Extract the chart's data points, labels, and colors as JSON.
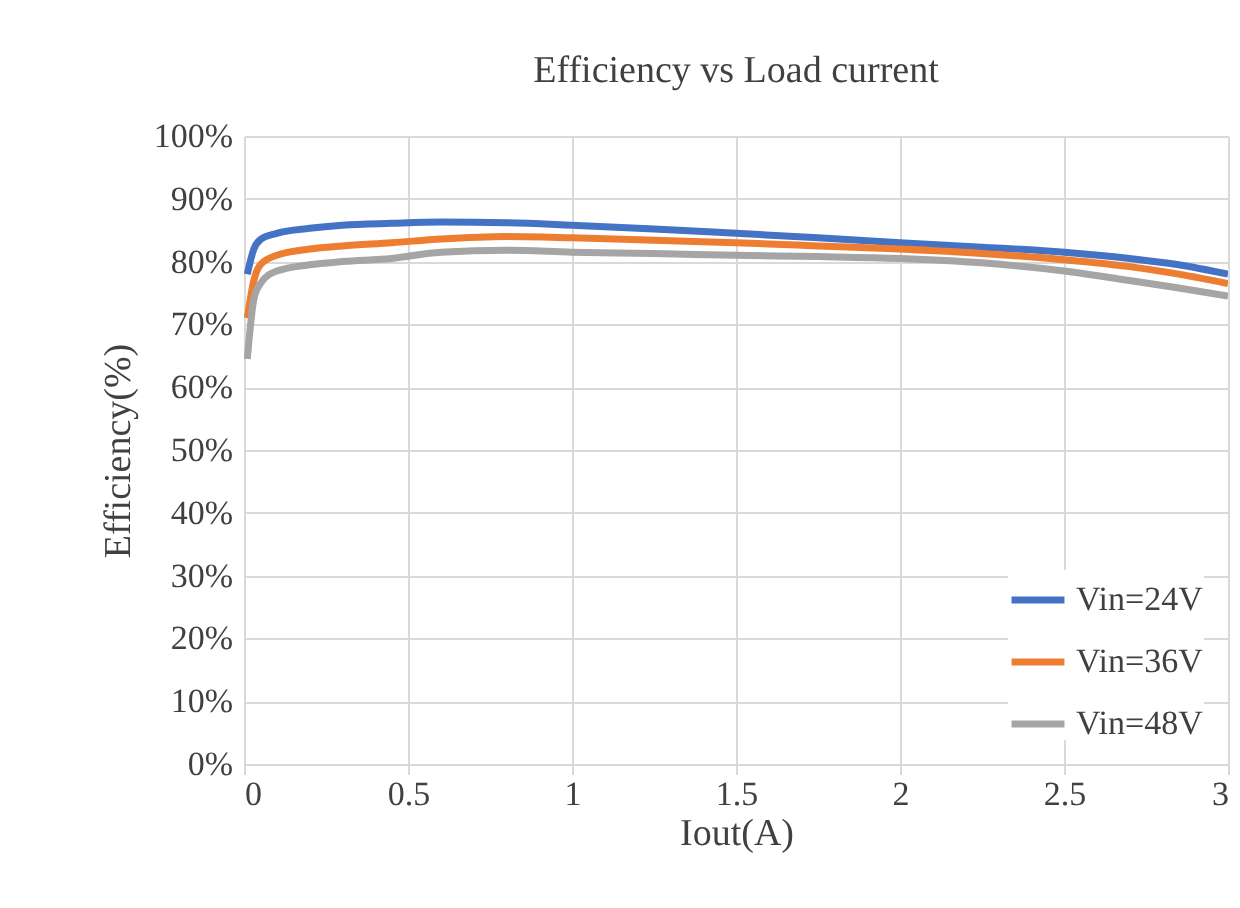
{
  "chart_data": {
    "type": "line",
    "title": "Efficiency vs Load current",
    "xlabel": "Iout(A)",
    "ylabel": "Efficiency(%)",
    "x": [
      0.01,
      0.03,
      0.05,
      0.1,
      0.2,
      0.3,
      0.45,
      0.6,
      0.8,
      1,
      1.25,
      1.5,
      1.75,
      2,
      2.25,
      2.5,
      2.7,
      2.85,
      3
    ],
    "series": [
      {
        "name": "Vin=24V",
        "color": "#4472c4",
        "values": [
          78,
          82,
          83.5,
          84.5,
          85.3,
          85.8,
          86.1,
          86.3,
          86.2,
          85.8,
          85.2,
          84.5,
          83.8,
          83,
          82.3,
          81.5,
          80.5,
          79.5,
          78
        ]
      },
      {
        "name": "Vin=36V",
        "color": "#ed7d31",
        "values": [
          71,
          77,
          79.5,
          81,
          82,
          82.5,
          83,
          83.6,
          84,
          83.8,
          83.4,
          83,
          82.5,
          82,
          81.3,
          80.3,
          79.2,
          78,
          76.5
        ]
      },
      {
        "name": "Vin=48V",
        "color": "#a5a5a5",
        "values": [
          64.5,
          74,
          76.5,
          78.5,
          79.5,
          80,
          80.5,
          81.5,
          81.8,
          81.5,
          81.3,
          81,
          80.8,
          80.5,
          79.8,
          78.5,
          77,
          75.8,
          74.5
        ]
      }
    ],
    "xlim": [
      0,
      3
    ],
    "xticks": [
      0,
      0.5,
      1,
      1.5,
      2,
      2.5,
      3
    ],
    "ylim": [
      0,
      100
    ],
    "yticks": [
      {
        "value": 0,
        "label": "0%"
      },
      {
        "value": 10,
        "label": "10%"
      },
      {
        "value": 20,
        "label": "20%"
      },
      {
        "value": 30,
        "label": "30%"
      },
      {
        "value": 40,
        "label": "40%"
      },
      {
        "value": 50,
        "label": "50%"
      },
      {
        "value": 60,
        "label": "60%"
      },
      {
        "value": 70,
        "label": "70%"
      },
      {
        "value": 80,
        "label": "80%"
      },
      {
        "value": 90,
        "label": "90%"
      },
      {
        "value": 100,
        "label": "100%"
      }
    ],
    "grid": true,
    "legend": "bottom right"
  }
}
